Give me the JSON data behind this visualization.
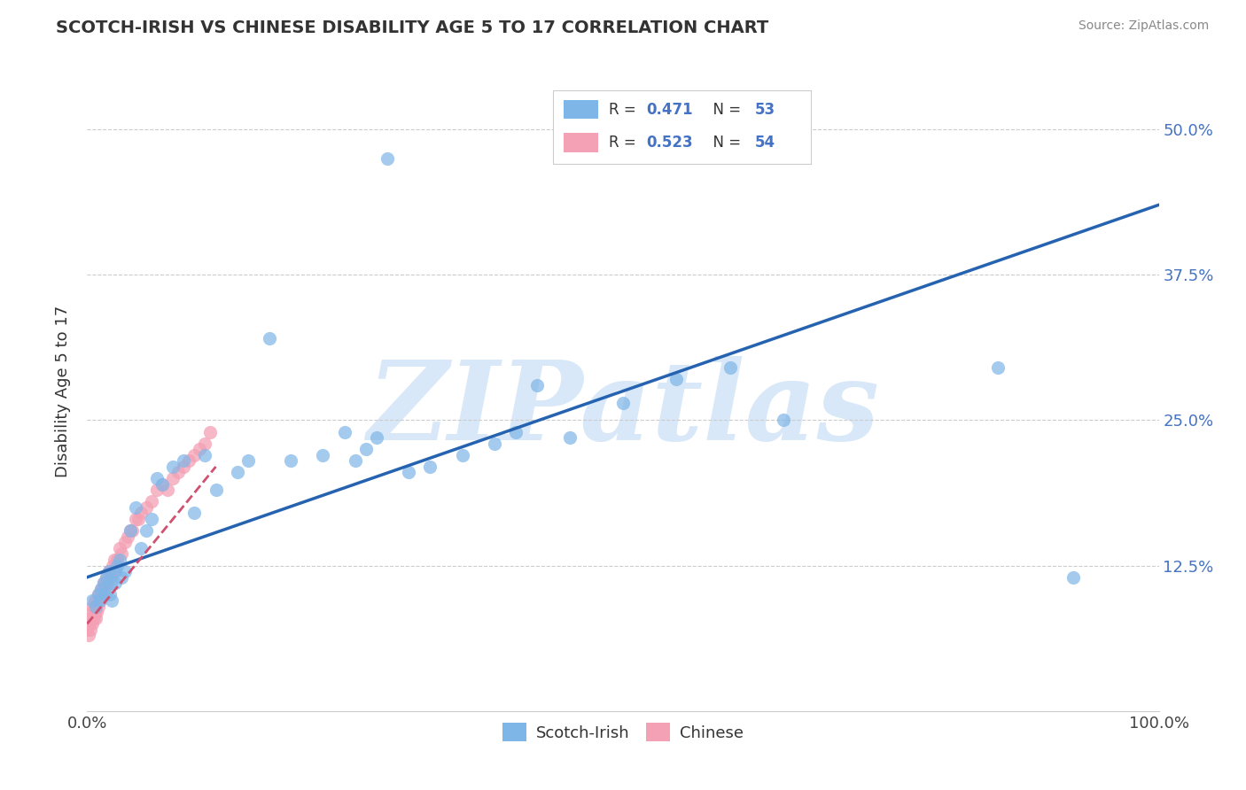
{
  "title": "SCOTCH-IRISH VS CHINESE DISABILITY AGE 5 TO 17 CORRELATION CHART",
  "source": "Source: ZipAtlas.com",
  "ylabel": "Disability Age 5 to 17",
  "xlim": [
    0.0,
    1.0
  ],
  "ylim": [
    0.0,
    0.55
  ],
  "xticks": [
    0.0,
    0.25,
    0.5,
    0.75,
    1.0
  ],
  "xtick_labels": [
    "0.0%",
    "",
    "",
    "",
    "100.0%"
  ],
  "ytick_values": [
    0.125,
    0.25,
    0.375,
    0.5
  ],
  "ytick_labels": [
    "12.5%",
    "25.0%",
    "37.5%",
    "50.0%"
  ],
  "scotch_irish_R": 0.471,
  "scotch_irish_N": 53,
  "chinese_R": 0.523,
  "chinese_N": 54,
  "scotch_irish_color": "#7EB6E8",
  "chinese_color": "#F4A0B5",
  "scotch_irish_line_color": "#2563B0",
  "chinese_line_color": "#D05070",
  "watermark_text": "ZIPatlas",
  "watermark_color": "#D8E8F8",
  "blue_label": "Scotch-Irish",
  "pink_label": "Chinese",
  "scotch_irish_line_x0": 0.0,
  "scotch_irish_line_y0": 0.115,
  "scotch_irish_line_x1": 1.0,
  "scotch_irish_line_y1": 0.435,
  "chinese_line_x0": 0.0,
  "chinese_line_y0": 0.075,
  "chinese_line_x1": 0.12,
  "chinese_line_y1": 0.21,
  "si_x": [
    0.005,
    0.008,
    0.01,
    0.012,
    0.013,
    0.015,
    0.016,
    0.018,
    0.02,
    0.021,
    0.022,
    0.023,
    0.025,
    0.026,
    0.028,
    0.03,
    0.032,
    0.035,
    0.04,
    0.045,
    0.05,
    0.055,
    0.06,
    0.065,
    0.07,
    0.08,
    0.09,
    0.1,
    0.11,
    0.12,
    0.14,
    0.15,
    0.17,
    0.19,
    0.22,
    0.24,
    0.25,
    0.26,
    0.27,
    0.28,
    0.3,
    0.32,
    0.35,
    0.38,
    0.4,
    0.42,
    0.45,
    0.5,
    0.55,
    0.6,
    0.65,
    0.85,
    0.92
  ],
  "si_y": [
    0.095,
    0.09,
    0.1,
    0.095,
    0.105,
    0.11,
    0.1,
    0.115,
    0.12,
    0.1,
    0.11,
    0.095,
    0.12,
    0.11,
    0.125,
    0.13,
    0.115,
    0.12,
    0.155,
    0.175,
    0.14,
    0.155,
    0.165,
    0.2,
    0.195,
    0.21,
    0.215,
    0.17,
    0.22,
    0.19,
    0.205,
    0.215,
    0.32,
    0.215,
    0.22,
    0.24,
    0.215,
    0.225,
    0.235,
    0.475,
    0.205,
    0.21,
    0.22,
    0.23,
    0.24,
    0.28,
    0.235,
    0.265,
    0.285,
    0.295,
    0.25,
    0.295,
    0.115
  ],
  "ch_x": [
    0.0,
    0.001,
    0.002,
    0.003,
    0.003,
    0.004,
    0.005,
    0.005,
    0.006,
    0.007,
    0.007,
    0.008,
    0.008,
    0.009,
    0.01,
    0.01,
    0.011,
    0.012,
    0.013,
    0.014,
    0.015,
    0.016,
    0.017,
    0.018,
    0.019,
    0.02,
    0.021,
    0.022,
    0.024,
    0.025,
    0.026,
    0.028,
    0.03,
    0.032,
    0.035,
    0.038,
    0.04,
    0.042,
    0.045,
    0.048,
    0.05,
    0.055,
    0.06,
    0.065,
    0.07,
    0.075,
    0.08,
    0.085,
    0.09,
    0.095,
    0.1,
    0.105,
    0.11,
    0.115
  ],
  "ch_y": [
    0.07,
    0.065,
    0.075,
    0.08,
    0.07,
    0.085,
    0.075,
    0.09,
    0.08,
    0.085,
    0.095,
    0.08,
    0.09,
    0.085,
    0.09,
    0.1,
    0.095,
    0.1,
    0.105,
    0.1,
    0.11,
    0.105,
    0.11,
    0.115,
    0.11,
    0.12,
    0.115,
    0.12,
    0.125,
    0.13,
    0.12,
    0.13,
    0.14,
    0.135,
    0.145,
    0.15,
    0.155,
    0.155,
    0.165,
    0.165,
    0.17,
    0.175,
    0.18,
    0.19,
    0.195,
    0.19,
    0.2,
    0.205,
    0.21,
    0.215,
    0.22,
    0.225,
    0.23,
    0.24
  ]
}
